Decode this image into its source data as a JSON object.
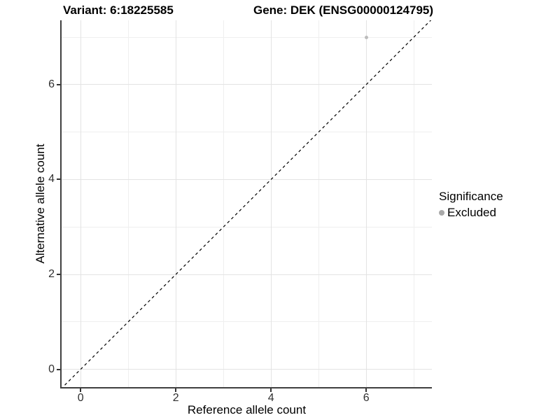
{
  "title": {
    "variant": "Variant: 6:18225585",
    "gene": "Gene: DEK (ENSG00000124795)"
  },
  "axes": {
    "x": {
      "label": "Reference allele count",
      "tick_labels": [
        "0",
        "2",
        "4",
        "6"
      ]
    },
    "y": {
      "label": "Alternative allele count",
      "tick_labels": [
        "0",
        "2",
        "4",
        "6"
      ]
    }
  },
  "legend": {
    "title": "Significance",
    "items": [
      {
        "label": "Excluded",
        "color": "#a9a9a9"
      }
    ]
  },
  "colors": {
    "point": "#bcbcbc",
    "grid_major": "#e3e3e3",
    "grid_minor": "#efefef",
    "axis_line": "#404040",
    "reference_line": "#000000"
  },
  "chart_data": {
    "type": "scatter",
    "title": "Variant: 6:18225585    Gene: DEK (ENSG00000124795)",
    "xlabel": "Reference allele count",
    "ylabel": "Alternative allele count",
    "xlim": [
      -0.4,
      7.38
    ],
    "ylim": [
      -0.375,
      7.355
    ],
    "x_ticks": [
      0,
      2,
      4,
      6
    ],
    "y_ticks": [
      0,
      2,
      4,
      6
    ],
    "x_minor_gridlines": [
      1,
      3,
      5,
      7
    ],
    "y_minor_gridlines": [
      1,
      3,
      5,
      7
    ],
    "grid": "on",
    "legend_position": "right",
    "series": [
      {
        "name": "Excluded",
        "color": "#bcbcbc",
        "points": [
          {
            "x": 6,
            "y": 7
          }
        ]
      }
    ],
    "reference_line": {
      "type": "identity y=x",
      "style": "dashed",
      "from": [
        -0.4,
        -0.4
      ],
      "to": [
        7.38,
        7.38
      ]
    }
  }
}
